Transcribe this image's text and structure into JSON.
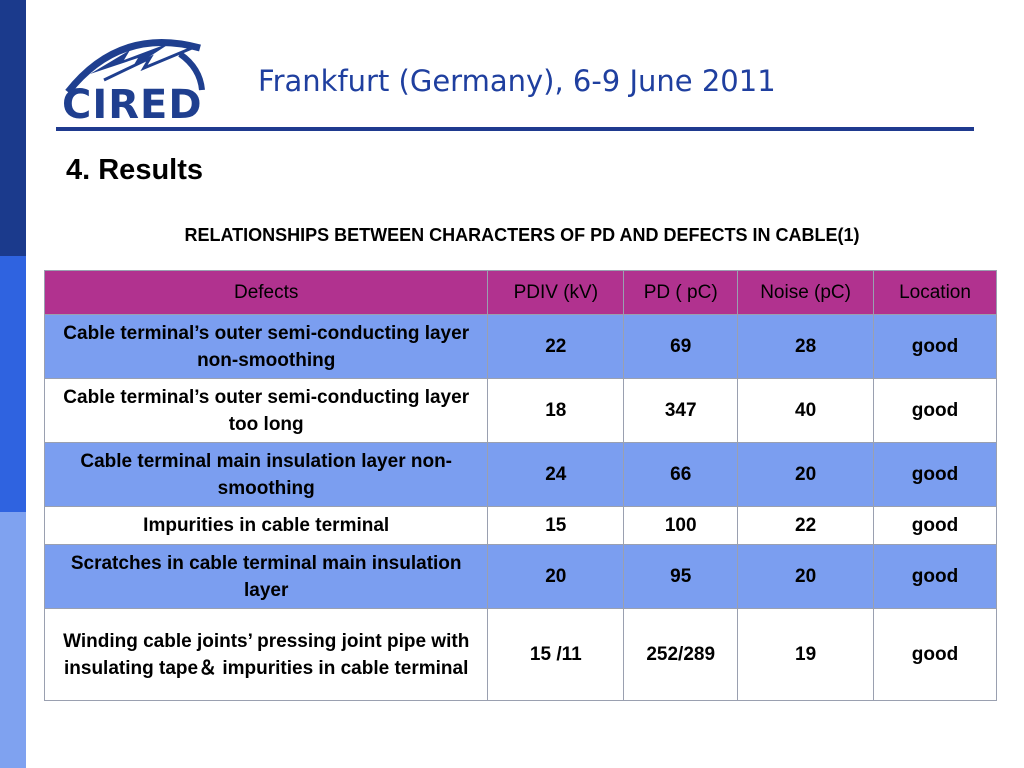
{
  "header": {
    "logo_text": "CIRED",
    "title": "Frankfurt (Germany), 6-9 June 2011"
  },
  "section": {
    "title": "4. Results",
    "caption": "RELATIONSHIPS BETWEEN CHARACTERS OF PD AND DEFECTS IN CABLE(1)"
  },
  "table": {
    "headers": [
      "Defects",
      "PDIV (kV)",
      "PD ( pC)",
      "Noise (pC)",
      "Location"
    ],
    "rows": [
      {
        "defect": "Cable terminal’s outer semi-conducting layer non-smoothing",
        "pdiv": "22",
        "pd": "69",
        "noise": "28",
        "location": "good"
      },
      {
        "defect": "Cable terminal’s outer semi-conducting layer too long",
        "pdiv": "18",
        "pd": "347",
        "noise": "40",
        "location": "good"
      },
      {
        "defect": "Cable terminal main insulation layer non-smoothing",
        "pdiv": "24",
        "pd": "66",
        "noise": "20",
        "location": "good"
      },
      {
        "defect": "Impurities in cable terminal",
        "pdiv": "15",
        "pd": "100",
        "noise": "22",
        "location": "good"
      },
      {
        "defect": "Scratches in cable terminal main insulation layer",
        "pdiv": "20",
        "pd": "95",
        "noise": "20",
        "location": "good"
      },
      {
        "defect": "Winding cable joints’ pressing joint pipe with insulating tape＆ impurities in cable terminal",
        "pdiv": "15 /11",
        "pd": "252/289",
        "noise": "19",
        "location": "good"
      }
    ]
  },
  "colors": {
    "header_row": "#b1328f",
    "shaded_row": "#7b9ef0",
    "title_blue": "#1f3f9f",
    "stripe_dark": "#1b3a8c",
    "stripe_mid": "#2f63e0",
    "stripe_light": "#7fa2f0"
  }
}
